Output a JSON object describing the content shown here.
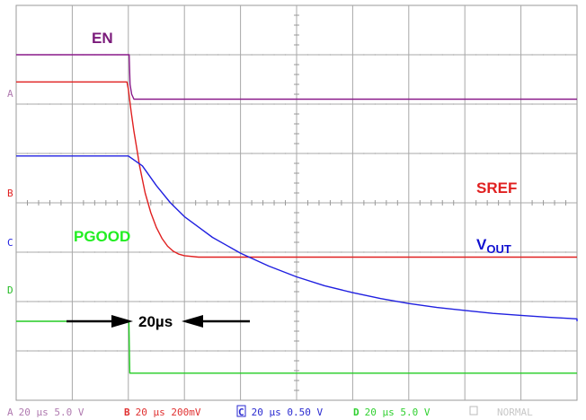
{
  "chart_data": {
    "type": "line",
    "title": "",
    "xlabel": "",
    "ylabel": "",
    "grid": true,
    "time_div_us": 20,
    "x_divisions": 10,
    "y_divisions": 8,
    "series": [
      {
        "name": "EN",
        "channel": "A",
        "color": "#8a1a8a",
        "x": [
          -40,
          0.3,
          0.6,
          1.2,
          2.0,
          210
        ],
        "y": [
          7.0,
          7.0,
          6.4,
          6.2,
          6.1,
          6.1
        ]
      },
      {
        "name": "SREF",
        "channel": "B",
        "color": "#e02020",
        "x": [
          -40,
          -0.5,
          0,
          1,
          2,
          3,
          4,
          6,
          8,
          10,
          12,
          14,
          16,
          18,
          20,
          25,
          210
        ],
        "y": [
          6.45,
          6.45,
          6.3,
          5.85,
          5.45,
          5.1,
          4.75,
          4.2,
          3.8,
          3.5,
          3.28,
          3.12,
          3.02,
          2.96,
          2.93,
          2.9,
          2.9
        ]
      },
      {
        "name": "VOUT",
        "channel": "C",
        "color": "#2020e0",
        "x": [
          -40,
          0,
          5,
          10,
          15,
          20,
          30,
          40,
          50,
          60,
          70,
          80,
          90,
          100,
          110,
          120,
          130,
          140,
          150,
          160,
          170,
          180,
          185,
          210
        ],
        "y": [
          4.95,
          4.95,
          4.75,
          4.35,
          4.0,
          3.72,
          3.3,
          2.98,
          2.72,
          2.5,
          2.32,
          2.18,
          2.06,
          1.96,
          1.88,
          1.82,
          1.76,
          1.72,
          1.68,
          1.65,
          1.63,
          1.61,
          1.6,
          1.6
        ]
      },
      {
        "name": "PGOOD",
        "channel": "D",
        "color": "#22cc22",
        "x": [
          -40,
          0.2,
          0.5,
          210
        ],
        "y": [
          1.6,
          1.6,
          0.55,
          0.55
        ]
      }
    ],
    "annotations": {
      "en": "EN",
      "sref": "SREF",
      "vout_main": "V",
      "vout_sub": "OUT",
      "pgood": "PGOOD",
      "interval": "20µs"
    }
  },
  "channel_markers": {
    "a": "A",
    "b": "B",
    "c": "C",
    "d": "D"
  },
  "footer": {
    "a": {
      "letter": "A",
      "text": "20 µs 5.0 V",
      "color": "#b07ab0"
    },
    "b": {
      "letter": "B",
      "text": "20 µs 200mV",
      "color": "#e03030"
    },
    "c": {
      "letter": "C",
      "text": "20 µs 0.50 V",
      "color": "#2a2ad0"
    },
    "d": {
      "letter": "D",
      "text": "20 µs 5.0 V",
      "color": "#30d030"
    },
    "mode": {
      "text": "NORMAL",
      "color": "#c8c8c8"
    }
  }
}
